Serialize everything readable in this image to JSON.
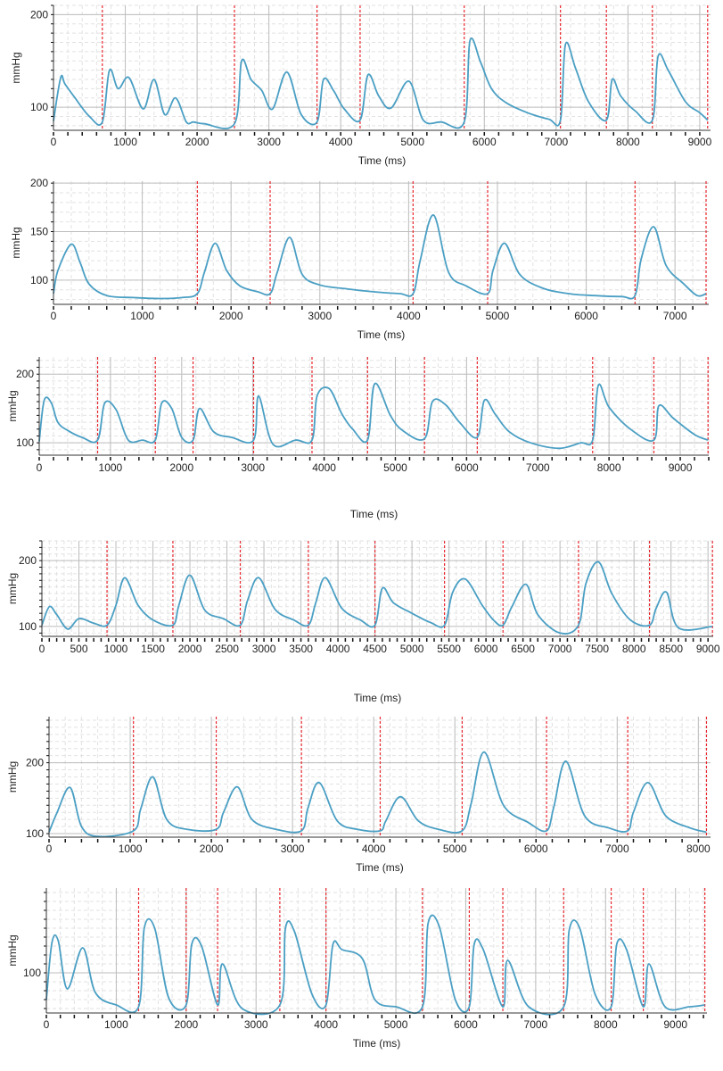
{
  "styles": {
    "line_color": "#4a9fc4",
    "marker_color": "#e8262d",
    "grid_major": "#bdbdbd",
    "grid_minor": "#e2e2e2",
    "axis_color": "#333333"
  },
  "chart_data": [
    {
      "type": "line",
      "xlabel": "Time (ms)",
      "ylabel": "mmHg",
      "xlim": [
        0,
        9150
      ],
      "ylim": [
        75,
        210
      ],
      "xticks": [
        0,
        1000,
        2000,
        3000,
        4000,
        5000,
        6000,
        7000,
        8000,
        9000
      ],
      "yticks": [
        100,
        200
      ],
      "markers": [
        680,
        2520,
        3670,
        4270,
        5720,
        7060,
        7700,
        8340,
        9110
      ],
      "series": [
        {
          "x": [
            0,
            100,
            160,
            300,
            500,
            680,
            780,
            900,
            1050,
            1250,
            1400,
            1550,
            1700,
            1850,
            1950,
            2100,
            2520,
            2620,
            2750,
            2900,
            3050,
            3250,
            3450,
            3670,
            3760,
            3900,
            4050,
            4270,
            4380,
            4530,
            4700,
            4950,
            5150,
            5400,
            5720,
            5800,
            5950,
            6100,
            6300,
            6600,
            6900,
            7060,
            7130,
            7270,
            7450,
            7700,
            7780,
            7900,
            8100,
            8340,
            8420,
            8560,
            8800,
            9000,
            9110
          ],
          "y": [
            85,
            132,
            125,
            110,
            90,
            84,
            140,
            120,
            132,
            98,
            130,
            92,
            110,
            84,
            84,
            82,
            82,
            150,
            130,
            118,
            98,
            138,
            92,
            84,
            130,
            118,
            98,
            86,
            135,
            112,
            99,
            128,
            86,
            84,
            84,
            172,
            148,
            120,
            105,
            94,
            87,
            86,
            168,
            142,
            106,
            86,
            130,
            112,
            96,
            86,
            155,
            140,
            106,
            94,
            86
          ]
        }
      ]
    },
    {
      "type": "line",
      "xlabel": "Time (ms)",
      "ylabel": "mmHg",
      "xlim": [
        0,
        7380
      ],
      "ylim": [
        75,
        202
      ],
      "xticks": [
        0,
        1000,
        2000,
        3000,
        4000,
        5000,
        6000,
        7000
      ],
      "yticks": [
        100,
        150,
        200
      ],
      "markers": [
        1620,
        2440,
        4050,
        4890,
        6550,
        7350
      ],
      "series": [
        {
          "x": [
            0,
            50,
            200,
            300,
            400,
            600,
            900,
            1200,
            1450,
            1620,
            1700,
            1820,
            1950,
            2100,
            2300,
            2440,
            2520,
            2660,
            2800,
            3000,
            3300,
            3600,
            3900,
            4050,
            4130,
            4280,
            4450,
            4650,
            4890,
            4950,
            5080,
            5250,
            5500,
            5800,
            6100,
            6400,
            6550,
            6620,
            6760,
            6900,
            7100,
            7250,
            7350
          ],
          "y": [
            86,
            110,
            137,
            118,
            96,
            84,
            82,
            81,
            82,
            86,
            108,
            138,
            110,
            94,
            88,
            86,
            108,
            144,
            106,
            95,
            91,
            88,
            86,
            86,
            120,
            167,
            108,
            94,
            86,
            110,
            138,
            106,
            92,
            86,
            84,
            83,
            84,
            122,
            155,
            115,
            96,
            84,
            86
          ]
        }
      ]
    },
    {
      "type": "line",
      "xlabel": "Time (ms)",
      "ylabel": "mmHg",
      "xlim": [
        0,
        9400
      ],
      "ylim": [
        82,
        225
      ],
      "xticks": [
        0,
        1000,
        2000,
        3000,
        4000,
        5000,
        6000,
        7000,
        8000,
        9000
      ],
      "yticks": [
        100,
        200
      ],
      "markers": [
        820,
        1630,
        2160,
        3010,
        3830,
        4610,
        5410,
        6150,
        7770,
        8630,
        9390
      ],
      "series": [
        {
          "x": [
            0,
            70,
            170,
            260,
            400,
            600,
            820,
            920,
            1080,
            1250,
            1450,
            1630,
            1720,
            1860,
            2000,
            2160,
            2250,
            2450,
            2700,
            3010,
            3080,
            3280,
            3600,
            3830,
            3900,
            4070,
            4250,
            4400,
            4610,
            4710,
            4930,
            5100,
            5410,
            5520,
            5700,
            5900,
            6150,
            6250,
            6400,
            6600,
            6900,
            7300,
            7600,
            7770,
            7850,
            8000,
            8300,
            8630,
            8700,
            8900,
            9200,
            9390
          ],
          "y": [
            102,
            162,
            158,
            130,
            118,
            108,
            104,
            158,
            148,
            104,
            104,
            104,
            158,
            150,
            108,
            104,
            150,
            116,
            108,
            104,
            168,
            98,
            104,
            104,
            168,
            179,
            142,
            120,
            104,
            186,
            140,
            118,
            106,
            160,
            156,
            130,
            108,
            162,
            142,
            116,
            100,
            92,
            100,
            104,
            184,
            152,
            120,
            104,
            154,
            136,
            112,
            104
          ]
        }
      ]
    },
    {
      "type": "line",
      "xlabel": "Time (ms)",
      "ylabel": "mmHg",
      "xlim": [
        0,
        9070
      ],
      "ylim": [
        85,
        230
      ],
      "xticks": [
        0,
        500,
        1000,
        1500,
        2000,
        2500,
        3000,
        3500,
        4000,
        4500,
        5000,
        5500,
        6000,
        6500,
        7000,
        7500,
        8000,
        8500,
        9000
      ],
      "yticks": [
        100,
        200
      ],
      "markers": [
        880,
        1770,
        2680,
        3600,
        4500,
        5440,
        6230,
        7250,
        8210,
        9060
      ],
      "series": [
        {
          "x": [
            0,
            100,
            200,
            350,
            500,
            700,
            880,
            1000,
            1120,
            1300,
            1500,
            1770,
            1850,
            2000,
            2200,
            2450,
            2680,
            2780,
            2930,
            3150,
            3400,
            3600,
            3700,
            3830,
            4050,
            4300,
            4500,
            4600,
            4750,
            5000,
            5250,
            5440,
            5550,
            5720,
            5950,
            6100,
            6230,
            6350,
            6540,
            6700,
            7000,
            7250,
            7350,
            7520,
            7700,
            7950,
            8210,
            8300,
            8440,
            8600,
            9060
          ],
          "y": [
            102,
            130,
            118,
            96,
            112,
            105,
            102,
            132,
            174,
            132,
            110,
            102,
            132,
            178,
            125,
            112,
            102,
            140,
            174,
            126,
            110,
            102,
            136,
            174,
            128,
            110,
            102,
            158,
            136,
            120,
            106,
            102,
            152,
            172,
            132,
            110,
            102,
            130,
            164,
            118,
            90,
            102,
            165,
            198,
            150,
            110,
            102,
            128,
            152,
            98,
            100
          ]
        }
      ]
    },
    {
      "type": "line",
      "xlabel": "Time (ms)",
      "ylabel": "mmHg",
      "xlim": [
        0,
        8150
      ],
      "ylim": [
        95,
        265
      ],
      "xticks": [
        0,
        1000,
        2000,
        3000,
        4000,
        5000,
        6000,
        7000,
        8000
      ],
      "yticks": [
        100,
        200
      ],
      "markers": [
        1040,
        2060,
        3110,
        4080,
        5090,
        6130,
        7130,
        8100
      ],
      "series": [
        {
          "x": [
            0,
            100,
            260,
            400,
            600,
            1040,
            1130,
            1280,
            1450,
            1700,
            2060,
            2150,
            2320,
            2500,
            2800,
            3110,
            3190,
            3330,
            3550,
            3800,
            4080,
            4150,
            4330,
            4550,
            4800,
            5090,
            5200,
            5360,
            5600,
            5900,
            6130,
            6220,
            6370,
            6600,
            6900,
            7130,
            7200,
            7380,
            7600,
            7900,
            8100
          ],
          "y": [
            102,
            130,
            165,
            110,
            96,
            104,
            135,
            180,
            120,
            106,
            106,
            130,
            166,
            120,
            106,
            104,
            136,
            172,
            118,
            106,
            104,
            118,
            152,
            118,
            106,
            104,
            142,
            215,
            140,
            116,
            104,
            138,
            202,
            125,
            108,
            104,
            130,
            172,
            125,
            108,
            102
          ]
        }
      ]
    },
    {
      "type": "line",
      "xlabel": "Time (ms)",
      "ylabel": "mmHg",
      "xlim": [
        0,
        9450
      ],
      "ylim": [
        55,
        195
      ],
      "xticks": [
        0,
        1000,
        2000,
        3000,
        4000,
        5000,
        6000,
        7000,
        8000,
        9000
      ],
      "yticks": [
        100
      ],
      "markers": [
        1320,
        2000,
        2450,
        3340,
        4000,
        5380,
        6050,
        6530,
        7400,
        8080,
        8540,
        9420
      ],
      "series": [
        {
          "x": [
            0,
            80,
            170,
            300,
            520,
            700,
            1000,
            1320,
            1400,
            1550,
            1750,
            2000,
            2080,
            2220,
            2450,
            2520,
            2800,
            3340,
            3420,
            3550,
            3800,
            4000,
            4100,
            4230,
            4520,
            4700,
            5000,
            5380,
            5460,
            5620,
            5850,
            6050,
            6120,
            6250,
            6530,
            6600,
            6900,
            7400,
            7480,
            7630,
            7850,
            8080,
            8160,
            8300,
            8540,
            8620,
            8850,
            9200,
            9420
          ],
          "y": [
            70,
            134,
            136,
            82,
            128,
            78,
            64,
            62,
            150,
            150,
            72,
            64,
            132,
            130,
            64,
            110,
            60,
            64,
            150,
            146,
            76,
            64,
            132,
            126,
            116,
            70,
            62,
            62,
            155,
            152,
            70,
            62,
            132,
            126,
            62,
            114,
            62,
            62,
            148,
            150,
            76,
            62,
            132,
            126,
            62,
            110,
            62,
            62,
            64
          ]
        }
      ]
    }
  ]
}
